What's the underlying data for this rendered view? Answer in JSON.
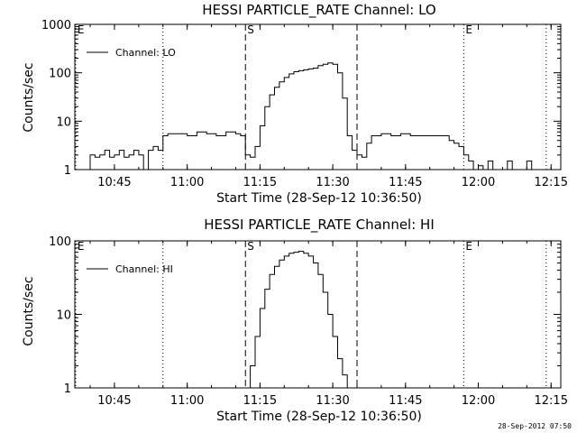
{
  "footer": {
    "timestamp": "28-Sep-2012 07:50"
  },
  "chart_data": [
    {
      "type": "line",
      "title": "HESSI PARTICLE_RATE Channel: LO",
      "xlabel": "Start Time (28-Sep-12 10:36:50)",
      "ylabel": "Counts/sec",
      "yscale": "log",
      "ylim": [
        1,
        1000
      ],
      "xlim": [
        "10:36:50",
        "12:17:00"
      ],
      "x_ticks": [
        "10:45",
        "11:00",
        "11:15",
        "11:30",
        "11:45",
        "12:00",
        "12:15"
      ],
      "y_ticks": [
        "1",
        "10",
        "100",
        "1000"
      ],
      "legend": {
        "placement": "top-left",
        "entries": [
          "Channel: LO"
        ]
      },
      "markers": [
        {
          "time": "10:37",
          "style": "dotted",
          "label": "E"
        },
        {
          "time": "10:55",
          "style": "dotted",
          "label": ""
        },
        {
          "time": "11:12",
          "style": "dashed",
          "label": "S"
        },
        {
          "time": "11:35",
          "style": "dashed",
          "label": ""
        },
        {
          "time": "11:57",
          "style": "dotted",
          "label": "E"
        },
        {
          "time": "12:14",
          "style": "dotted",
          "label": ""
        }
      ],
      "series": [
        {
          "name": "Channel: LO",
          "x": [
            "10:39",
            "10:40",
            "10:41",
            "10:42",
            "10:43",
            "10:44",
            "10:45",
            "10:46",
            "10:47",
            "10:48",
            "10:49",
            "10:50",
            "10:51",
            "10:52",
            "10:53",
            "10:54",
            "10:55",
            "10:56",
            "10:58",
            "11:00",
            "11:02",
            "11:04",
            "11:06",
            "11:08",
            "11:10",
            "11:11",
            "11:12",
            "11:13",
            "11:14",
            "11:15",
            "11:16",
            "11:17",
            "11:18",
            "11:19",
            "11:20",
            "11:21",
            "11:22",
            "11:23",
            "11:24",
            "11:25",
            "11:26",
            "11:27",
            "11:28",
            "11:29",
            "11:30",
            "11:31",
            "11:32",
            "11:33",
            "11:34",
            "11:35",
            "11:36",
            "11:37",
            "11:38",
            "11:40",
            "11:42",
            "11:44",
            "11:46",
            "11:48",
            "11:50",
            "11:52",
            "11:54",
            "11:55",
            "11:56",
            "11:57",
            "11:58",
            "11:59",
            "12:00",
            "12:01",
            "12:02",
            "12:03",
            "12:04",
            "12:05",
            "12:06",
            "12:07",
            "12:08",
            "12:09",
            "12:10",
            "12:11",
            "12:12",
            "12:13"
          ],
          "y": [
            1,
            2,
            1.8,
            2,
            2.5,
            1.8,
            2,
            2.5,
            1.8,
            2,
            2.5,
            2,
            1,
            2.5,
            3,
            2.5,
            5,
            5.5,
            5.5,
            5,
            6,
            5.5,
            5,
            6,
            5.5,
            5,
            2,
            1.8,
            3,
            8,
            20,
            35,
            50,
            65,
            80,
            95,
            105,
            110,
            115,
            120,
            125,
            140,
            150,
            160,
            150,
            100,
            30,
            5,
            2.5,
            2,
            1.8,
            3.5,
            5,
            5.5,
            5,
            5.5,
            5,
            5,
            5,
            5,
            4,
            3.5,
            3,
            2,
            1.5,
            1,
            1.2,
            1,
            1.5,
            1,
            1,
            1,
            1.5,
            1,
            1,
            1,
            1.5,
            1,
            1,
            1
          ]
        }
      ]
    },
    {
      "type": "line",
      "title": "HESSI PARTICLE_RATE Channel: HI",
      "xlabel": "Start Time (28-Sep-12 10:36:50)",
      "ylabel": "Counts/sec",
      "yscale": "log",
      "ylim": [
        1,
        100
      ],
      "xlim": [
        "10:36:50",
        "12:17:00"
      ],
      "x_ticks": [
        "10:45",
        "11:00",
        "11:15",
        "11:30",
        "11:45",
        "12:00",
        "12:15"
      ],
      "y_ticks": [
        "1",
        "10",
        "100"
      ],
      "legend": {
        "placement": "top-left",
        "entries": [
          "Channel: HI"
        ]
      },
      "markers": [
        {
          "time": "10:37",
          "style": "dotted",
          "label": "E"
        },
        {
          "time": "10:55",
          "style": "dotted",
          "label": ""
        },
        {
          "time": "11:12",
          "style": "dashed",
          "label": "S"
        },
        {
          "time": "11:35",
          "style": "dashed",
          "label": ""
        },
        {
          "time": "11:57",
          "style": "dotted",
          "label": "E"
        },
        {
          "time": "12:14",
          "style": "dotted",
          "label": ""
        }
      ],
      "series": [
        {
          "name": "Channel: HI",
          "x": [
            "11:12",
            "11:13",
            "11:14",
            "11:15",
            "11:16",
            "11:17",
            "11:18",
            "11:19",
            "11:20",
            "11:21",
            "11:22",
            "11:23",
            "11:24",
            "11:25",
            "11:26",
            "11:27",
            "11:28",
            "11:29",
            "11:30",
            "11:31",
            "11:32",
            "11:33"
          ],
          "y": [
            1,
            2,
            5,
            12,
            22,
            35,
            45,
            55,
            62,
            68,
            70,
            72,
            68,
            62,
            50,
            35,
            20,
            10,
            5,
            2.5,
            1.5,
            1
          ]
        }
      ]
    }
  ]
}
